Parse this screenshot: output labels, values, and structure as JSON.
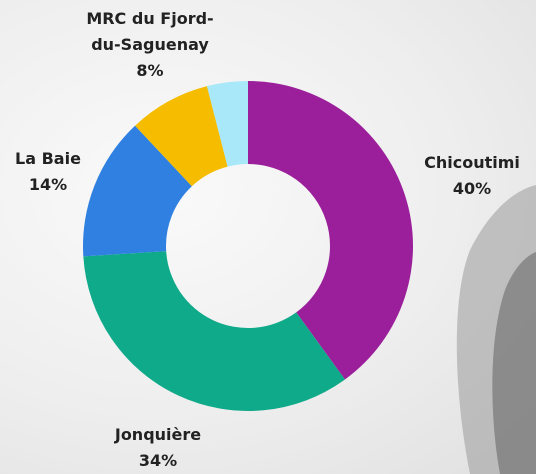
{
  "chart_data": {
    "type": "donut",
    "categories": [
      "Chicoutimi",
      "Jonquière",
      "La Baie",
      "MRC du Fjord-du-Saguenay",
      null
    ],
    "values": [
      40,
      34,
      14,
      8,
      4
    ],
    "value_labels": [
      "40%",
      "34%",
      "14%",
      "8%",
      null
    ],
    "colors": [
      "#9b1f9b",
      "#0faa8a",
      "#2f80e0",
      "#f5bc00",
      "#a8e8f8"
    ]
  }
}
